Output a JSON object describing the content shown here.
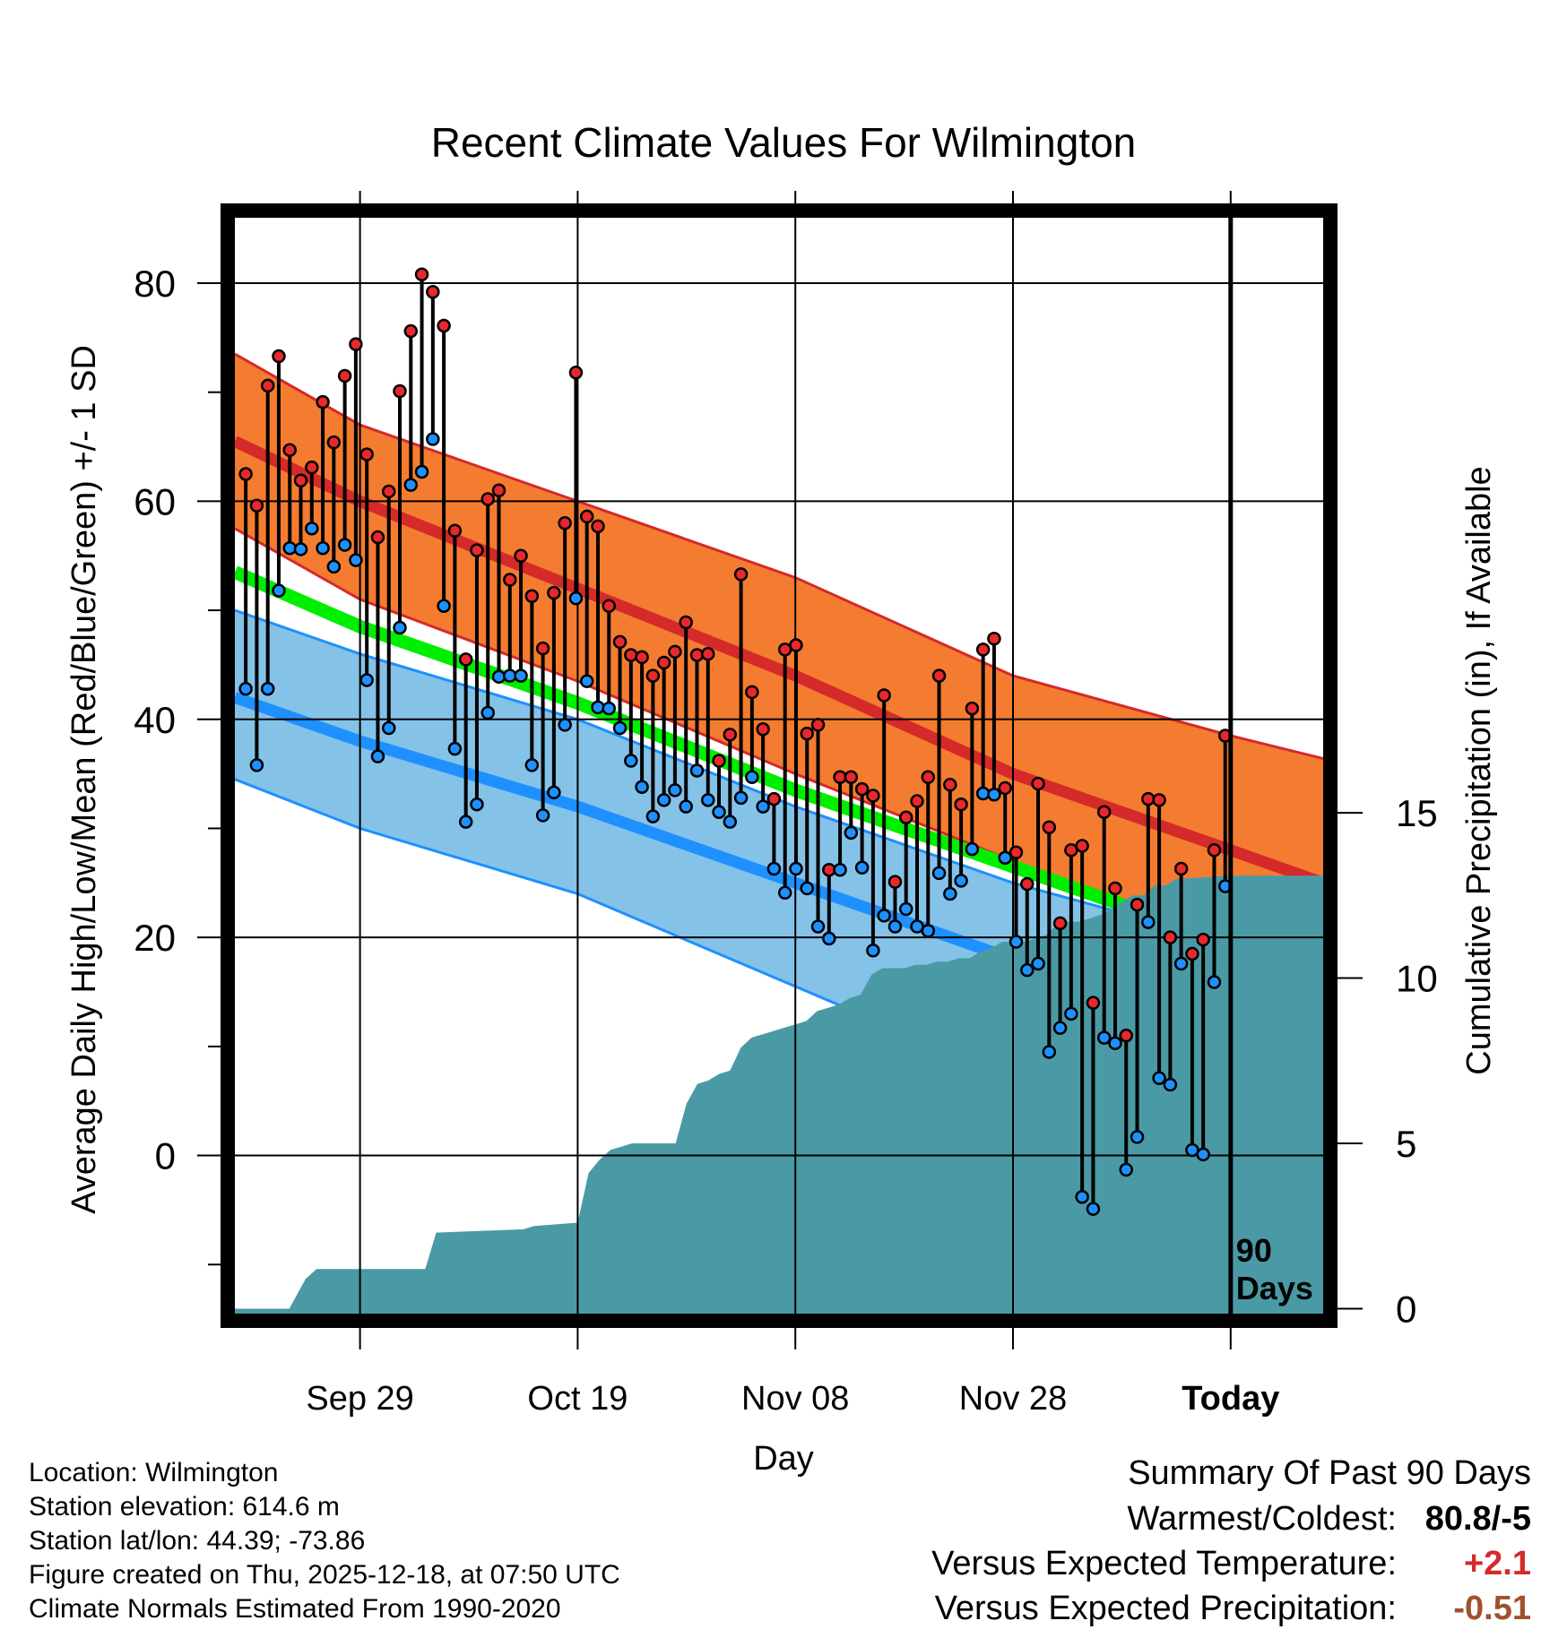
{
  "chart_data": {
    "type": "line",
    "title": "Recent Climate Values For Wilmington",
    "xlabel": "Day",
    "ylabel": "Average Daily High/Low/Mean (Red/Blue/Green) +/- 1 SD",
    "y2label": "Cumulative Precipitation (in), If Available",
    "ylim": [
      -14.5,
      86
    ],
    "y2lim": [
      -0.15,
      33
    ],
    "xlim": [
      -11.5,
      88.5
    ],
    "x_ticks": [
      {
        "day": 0,
        "label": "Sep 29"
      },
      {
        "day": 20,
        "label": "Oct 19"
      },
      {
        "day": 40,
        "label": "Nov 08"
      },
      {
        "day": 60,
        "label": "Nov 28"
      },
      {
        "day": 80,
        "label": "Today"
      }
    ],
    "y_ticks": [
      "80",
      "60",
      "40",
      "20",
      "0"
    ],
    "y2_ticks": [
      "15",
      "10",
      "5",
      "0"
    ],
    "today_marker": {
      "line1": "90",
      "line2": "Days"
    },
    "normals": {
      "days": [
        -11.5,
        0,
        20,
        40,
        60,
        80,
        88.5
      ],
      "high_upper": [
        73.5,
        67,
        60,
        53,
        44,
        38.5,
        36.4
      ],
      "high_mean": [
        65.5,
        60,
        52,
        44,
        35,
        28,
        25
      ],
      "high_lower": [
        57.5,
        51,
        43.5,
        35,
        27,
        18.5,
        13
      ],
      "mean": [
        53.5,
        48.5,
        41.5,
        33.5,
        26.5,
        19.5,
        16
      ],
      "low_upper": [
        50,
        46,
        40,
        32,
        25,
        19.5,
        21.5
      ],
      "low_mean": [
        42,
        38,
        32,
        25,
        18,
        12,
        9
      ],
      "low_lower": [
        34.5,
        30,
        24,
        15.5,
        7,
        -1,
        -4
      ]
    },
    "series": [
      {
        "name": "High",
        "color": "#e8282b",
        "values": [
          62.5,
          59.6,
          70.6,
          73.3,
          64.7,
          61.9,
          63.1,
          69.1,
          65.4,
          71.5,
          74.4,
          64.3,
          56.7,
          60.9,
          70.1,
          75.6,
          80.8,
          79.2,
          76.1,
          57.3,
          45.5,
          55.5,
          60.2,
          61.0,
          52.8,
          55.0,
          51.3,
          46.5,
          51.6,
          58.0,
          71.8,
          58.6,
          57.7,
          50.4,
          47.1,
          45.9,
          45.7,
          44.0,
          45.2,
          46.2,
          48.9,
          45.9,
          46.0,
          36.2,
          38.6,
          53.3,
          42.5,
          39.1,
          32.7,
          46.4,
          46.8,
          38.7,
          39.5,
          26.2,
          34.7,
          34.7,
          33.6,
          33.0,
          42.2,
          25.1,
          31.0,
          32.5,
          34.7,
          44.0,
          34.0,
          32.2,
          41.0,
          46.4,
          47.4,
          33.7,
          27.8,
          24.9,
          34.1,
          30.1,
          21.3,
          28.0,
          28.4,
          14.0,
          31.5,
          24.5,
          11.0,
          23.0,
          32.7,
          32.6,
          20.0,
          26.3,
          18.5,
          19.8,
          28.0,
          38.5
        ]
      },
      {
        "name": "Low",
        "color": "#1e90ff",
        "values": [
          42.8,
          35.8,
          42.8,
          51.8,
          55.7,
          55.6,
          57.5,
          55.7,
          54.0,
          56.0,
          54.6,
          43.6,
          36.6,
          39.2,
          48.4,
          61.5,
          62.7,
          65.7,
          50.4,
          37.3,
          30.6,
          32.2,
          40.6,
          43.9,
          44.0,
          44.0,
          35.8,
          31.2,
          33.3,
          39.5,
          51.1,
          43.5,
          41.1,
          41.0,
          39.2,
          36.2,
          33.8,
          31.1,
          32.6,
          33.5,
          32.0,
          35.3,
          32.6,
          31.5,
          30.6,
          32.8,
          34.7,
          32.0,
          26.3,
          24.1,
          26.3,
          24.5,
          21.0,
          19.9,
          26.2,
          29.6,
          26.4,
          18.8,
          22.0,
          21.0,
          22.6,
          21.0,
          20.6,
          25.9,
          24.0,
          25.2,
          28.1,
          33.2,
          33.1,
          27.3,
          19.6,
          17.0,
          17.6,
          9.5,
          11.7,
          13.0,
          -3.8,
          -4.9,
          10.8,
          10.3,
          -1.3,
          1.7,
          21.4,
          7.1,
          6.5,
          17.6,
          0.5,
          0.1,
          15.9,
          24.7
        ]
      },
      {
        "name": "Cumulative Precipitation",
        "color": "#4a9aa5",
        "days": [
          -11.5,
          -6.5,
          -5,
          -4,
          0,
          6,
          7,
          15,
          16,
          20,
          21,
          22,
          23,
          24,
          25,
          26,
          27,
          28,
          29,
          30,
          31,
          32,
          33,
          34,
          35,
          36,
          37,
          38,
          39,
          40,
          41,
          42,
          43,
          44,
          45,
          46,
          47,
          48,
          49,
          50,
          51,
          52,
          53,
          54,
          55,
          56,
          57,
          58,
          59,
          60,
          61,
          62,
          63,
          64,
          65,
          66,
          67,
          68,
          69,
          70,
          71,
          72,
          73,
          74,
          75,
          80,
          88.5
        ],
        "values": [
          0,
          0,
          0.9,
          1.2,
          1.2,
          1.2,
          2.3,
          2.4,
          2.5,
          2.6,
          4.1,
          4.5,
          4.8,
          4.9,
          5.0,
          5.0,
          5.0,
          5.0,
          5.0,
          6.2,
          6.8,
          6.9,
          7.1,
          7.2,
          7.9,
          8.2,
          8.3,
          8.4,
          8.5,
          8.6,
          8.7,
          9.0,
          9.1,
          9.2,
          9.4,
          9.5,
          10.1,
          10.3,
          10.3,
          10.3,
          10.4,
          10.4,
          10.5,
          10.5,
          10.6,
          10.6,
          10.8,
          10.9,
          11.1,
          11.1,
          11.1,
          11.2,
          11.3,
          11.6,
          11.7,
          11.7,
          11.8,
          11.9,
          12.1,
          12.3,
          12.5,
          12.5,
          12.8,
          12.8,
          13.0,
          13.1,
          13.1
        ]
      }
    ]
  },
  "info": {
    "location": "Location: Wilmington",
    "elevation": "Station elevation: 614.6 m",
    "latlon": "Station lat/lon: 44.39; -73.86",
    "created": "Figure created on Thu, 2025-12-18, at 07:50 UTC",
    "normals": "Climate Normals Estimated From 1990-2020"
  },
  "summary": {
    "title": "Summary Of Past 90 Days",
    "warm_cold_label": "Warmest/Coldest:",
    "warm_cold_value": "80.8/-5",
    "temp_label": "Versus Expected Temperature:",
    "temp_value": "+2.1",
    "temp_color": "#d42a2a",
    "precip_label": "Versus Expected Precipitation:",
    "precip_value": "-0.51",
    "precip_color": "#a0522d"
  }
}
